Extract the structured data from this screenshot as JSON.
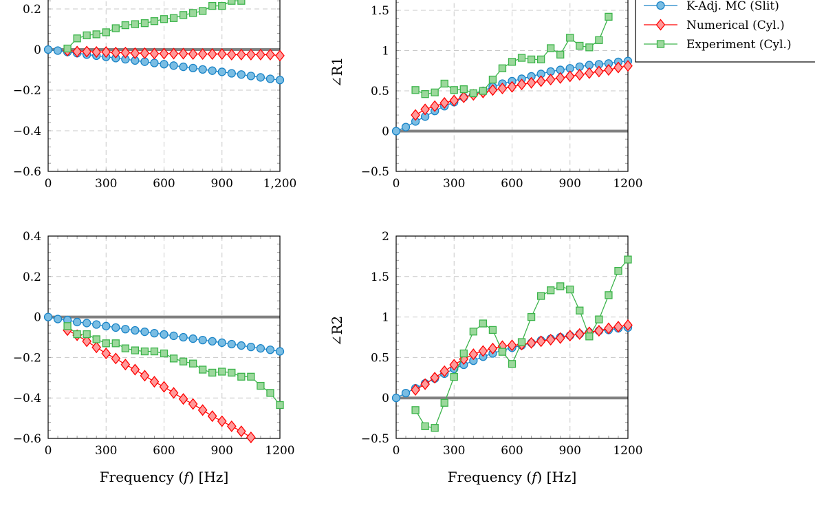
{
  "legend": {
    "placement": "top-right",
    "entries": [
      {
        "label": "K-Adj. MC (Slit)",
        "marker": "circle",
        "color": "#1a84c7",
        "fill": "#7abde3"
      },
      {
        "label": "Numerical (Cyl.)",
        "marker": "diamond",
        "color": "#ff0000",
        "fill": "#ff9a9a"
      },
      {
        "label": "Experiment (Cyl.)",
        "marker": "square",
        "color": "#3cb44b",
        "fill": "#9cd89c"
      }
    ]
  },
  "reference_line": {
    "y": 0,
    "color": "#808080"
  },
  "chart_data": [
    {
      "type": "line",
      "panel": "top-left",
      "grid": true,
      "xlabel": "",
      "ylabel": "",
      "xlim": [
        0,
        1200
      ],
      "ylim": [
        -0.6,
        0.4
      ],
      "xticks": [
        0,
        300,
        600,
        900,
        1200
      ],
      "xtick_labels": [
        "0",
        "300",
        "600",
        "900",
        "1,200"
      ],
      "yticks": [
        -0.6,
        -0.4,
        -0.2,
        0,
        0.2
      ],
      "ytick_labels": [
        "−0.6",
        "−0.4",
        "−0.2",
        "0",
        "0.2"
      ],
      "series": [
        {
          "x": [
            0,
            50,
            100,
            150,
            200,
            250,
            300,
            350,
            400,
            450,
            500,
            550,
            600,
            650,
            700,
            750,
            800,
            850,
            900,
            950,
            1000,
            1050,
            1100,
            1150,
            1200
          ],
          "y": [
            0,
            -0.005,
            -0.012,
            -0.018,
            -0.025,
            -0.03,
            -0.036,
            -0.042,
            -0.048,
            -0.054,
            -0.06,
            -0.066,
            -0.072,
            -0.079,
            -0.085,
            -0.091,
            -0.098,
            -0.104,
            -0.11,
            -0.117,
            -0.123,
            -0.13,
            -0.137,
            -0.144,
            -0.15
          ]
        },
        {
          "x": [
            100,
            150,
            200,
            250,
            300,
            350,
            400,
            450,
            500,
            550,
            600,
            650,
            700,
            750,
            800,
            850,
            900,
            950,
            1000,
            1050,
            1100,
            1150,
            1200
          ],
          "y": [
            -0.005,
            -0.01,
            -0.01,
            -0.012,
            -0.012,
            -0.015,
            -0.015,
            -0.018,
            -0.018,
            -0.02,
            -0.02,
            -0.02,
            -0.02,
            -0.022,
            -0.022,
            -0.022,
            -0.022,
            -0.025,
            -0.025,
            -0.025,
            -0.025,
            -0.025,
            -0.03
          ]
        },
        {
          "x": [
            100,
            150,
            200,
            250,
            300,
            350,
            400,
            450,
            500,
            550,
            600,
            650,
            700,
            750,
            800,
            850,
            900,
            950,
            1000
          ],
          "y": [
            0.005,
            0.055,
            0.07,
            0.075,
            0.085,
            0.105,
            0.12,
            0.125,
            0.13,
            0.14,
            0.15,
            0.155,
            0.17,
            0.18,
            0.19,
            0.215,
            0.215,
            0.24,
            0.24
          ]
        }
      ]
    },
    {
      "type": "line",
      "panel": "top-right",
      "grid": true,
      "xlabel": "",
      "ylabel": "∠R1",
      "xlim": [
        0,
        1200
      ],
      "ylim": [
        -0.5,
        2
      ],
      "xticks": [
        0,
        300,
        600,
        900,
        1200
      ],
      "xtick_labels": [
        "0",
        "300",
        "600",
        "900",
        "1200"
      ],
      "yticks": [
        -0.5,
        0,
        0.5,
        1,
        1.5
      ],
      "ytick_labels": [
        "−0.5",
        "0",
        "0.5",
        "1",
        "1.5"
      ],
      "series": [
        {
          "x": [
            0,
            50,
            100,
            150,
            200,
            250,
            300,
            350,
            400,
            450,
            500,
            550,
            600,
            650,
            700,
            750,
            800,
            850,
            900,
            950,
            1000,
            1050,
            1100,
            1150,
            1200
          ],
          "y": [
            0,
            0.05,
            0.12,
            0.18,
            0.25,
            0.31,
            0.36,
            0.42,
            0.46,
            0.5,
            0.55,
            0.59,
            0.62,
            0.65,
            0.68,
            0.71,
            0.74,
            0.76,
            0.78,
            0.8,
            0.82,
            0.83,
            0.84,
            0.86,
            0.87
          ]
        },
        {
          "x": [
            100,
            150,
            200,
            250,
            300,
            350,
            400,
            450,
            500,
            550,
            600,
            650,
            700,
            750,
            800,
            850,
            900,
            950,
            1000,
            1050,
            1100,
            1150,
            1200
          ],
          "y": [
            0.2,
            0.27,
            0.31,
            0.35,
            0.38,
            0.42,
            0.45,
            0.48,
            0.51,
            0.53,
            0.55,
            0.58,
            0.6,
            0.62,
            0.64,
            0.66,
            0.68,
            0.7,
            0.72,
            0.74,
            0.76,
            0.79,
            0.81
          ]
        },
        {
          "x": [
            100,
            150,
            200,
            250,
            300,
            350,
            400,
            450,
            500,
            550,
            600,
            650,
            700,
            750,
            800,
            850,
            900,
            950,
            1000,
            1050,
            1100
          ],
          "y": [
            0.51,
            0.46,
            0.48,
            0.59,
            0.51,
            0.52,
            0.47,
            0.5,
            0.64,
            0.78,
            0.86,
            0.91,
            0.89,
            0.89,
            1.03,
            0.95,
            1.16,
            1.06,
            1.04,
            1.13,
            1.42
          ]
        }
      ]
    },
    {
      "type": "line",
      "panel": "bottom-left",
      "grid": true,
      "xlabel": "Frequency (f) [Hz]",
      "ylabel": "",
      "xlim": [
        0,
        1200
      ],
      "ylim": [
        -0.6,
        0.4
      ],
      "xticks": [
        0,
        300,
        600,
        900,
        1200
      ],
      "xtick_labels": [
        "0",
        "300",
        "600",
        "900",
        "1200"
      ],
      "yticks": [
        -0.6,
        -0.4,
        -0.2,
        0,
        0.2,
        0.4
      ],
      "ytick_labels": [
        "−0.6",
        "−0.4",
        "−0.2",
        "0",
        "0.2",
        "0.4"
      ],
      "series": [
        {
          "x": [
            0,
            50,
            100,
            150,
            200,
            250,
            300,
            350,
            400,
            450,
            500,
            550,
            600,
            650,
            700,
            750,
            800,
            850,
            900,
            950,
            1000,
            1050,
            1100,
            1150,
            1200
          ],
          "y": [
            0,
            -0.01,
            -0.015,
            -0.025,
            -0.03,
            -0.037,
            -0.045,
            -0.052,
            -0.06,
            -0.066,
            -0.073,
            -0.08,
            -0.086,
            -0.093,
            -0.1,
            -0.107,
            -0.114,
            -0.12,
            -0.127,
            -0.134,
            -0.141,
            -0.148,
            -0.155,
            -0.162,
            -0.17
          ]
        },
        {
          "x": [
            100,
            150,
            200,
            250,
            300,
            350,
            400,
            450,
            500,
            550,
            600,
            650,
            700,
            750,
            800,
            850,
            900,
            950,
            1000,
            1050
          ],
          "y": [
            -0.065,
            -0.09,
            -0.12,
            -0.15,
            -0.18,
            -0.205,
            -0.235,
            -0.26,
            -0.29,
            -0.32,
            -0.345,
            -0.375,
            -0.405,
            -0.43,
            -0.46,
            -0.49,
            -0.515,
            -0.54,
            -0.565,
            -0.595
          ]
        },
        {
          "x": [
            100,
            150,
            200,
            250,
            300,
            350,
            400,
            450,
            500,
            550,
            600,
            650,
            700,
            750,
            800,
            850,
            900,
            950,
            1000,
            1050,
            1100,
            1150,
            1200
          ],
          "y": [
            -0.045,
            -0.085,
            -0.085,
            -0.11,
            -0.13,
            -0.13,
            -0.155,
            -0.165,
            -0.17,
            -0.17,
            -0.18,
            -0.205,
            -0.22,
            -0.23,
            -0.26,
            -0.275,
            -0.27,
            -0.275,
            -0.295,
            -0.295,
            -0.34,
            -0.375,
            -0.435
          ]
        }
      ]
    },
    {
      "type": "line",
      "panel": "bottom-right",
      "grid": true,
      "xlabel": "Frequency (f) [Hz]",
      "ylabel": "∠R2",
      "xlim": [
        0,
        1200
      ],
      "ylim": [
        -0.5,
        2
      ],
      "xticks": [
        0,
        300,
        600,
        900,
        1200
      ],
      "xtick_labels": [
        "0",
        "300",
        "600",
        "900",
        "1200"
      ],
      "yticks": [
        -0.5,
        0,
        0.5,
        1,
        1.5,
        2
      ],
      "ytick_labels": [
        "−0.5",
        "0",
        "0.5",
        "1",
        "1.5",
        "2"
      ],
      "series": [
        {
          "x": [
            0,
            50,
            100,
            150,
            200,
            250,
            300,
            350,
            400,
            450,
            500,
            550,
            600,
            650,
            700,
            750,
            800,
            850,
            900,
            950,
            1000,
            1050,
            1100,
            1150,
            1200
          ],
          "y": [
            0,
            0.06,
            0.12,
            0.18,
            0.24,
            0.3,
            0.36,
            0.41,
            0.46,
            0.51,
            0.55,
            0.59,
            0.62,
            0.65,
            0.68,
            0.71,
            0.73,
            0.75,
            0.77,
            0.79,
            0.81,
            0.83,
            0.84,
            0.86,
            0.87
          ]
        },
        {
          "x": [
            100,
            150,
            200,
            250,
            300,
            350,
            400,
            450,
            500,
            550,
            600,
            650,
            700,
            750,
            800,
            850,
            900,
            950,
            1000,
            1050,
            1100,
            1150,
            1200
          ],
          "y": [
            0.1,
            0.17,
            0.25,
            0.33,
            0.41,
            0.48,
            0.54,
            0.58,
            0.61,
            0.64,
            0.65,
            0.66,
            0.68,
            0.7,
            0.72,
            0.74,
            0.77,
            0.79,
            0.81,
            0.83,
            0.86,
            0.88,
            0.9
          ]
        },
        {
          "x": [
            100,
            150,
            200,
            250,
            300,
            350,
            400,
            450,
            500,
            550,
            600,
            650,
            700,
            750,
            800,
            850,
            900,
            950,
            1000,
            1050,
            1100,
            1150,
            1200
          ],
          "y": [
            -0.15,
            -0.35,
            -0.37,
            -0.06,
            0.26,
            0.55,
            0.82,
            0.92,
            0.84,
            0.57,
            0.42,
            0.69,
            1.0,
            1.26,
            1.33,
            1.38,
            1.34,
            1.08,
            0.76,
            0.97,
            1.27,
            1.57,
            1.71
          ]
        }
      ]
    }
  ]
}
